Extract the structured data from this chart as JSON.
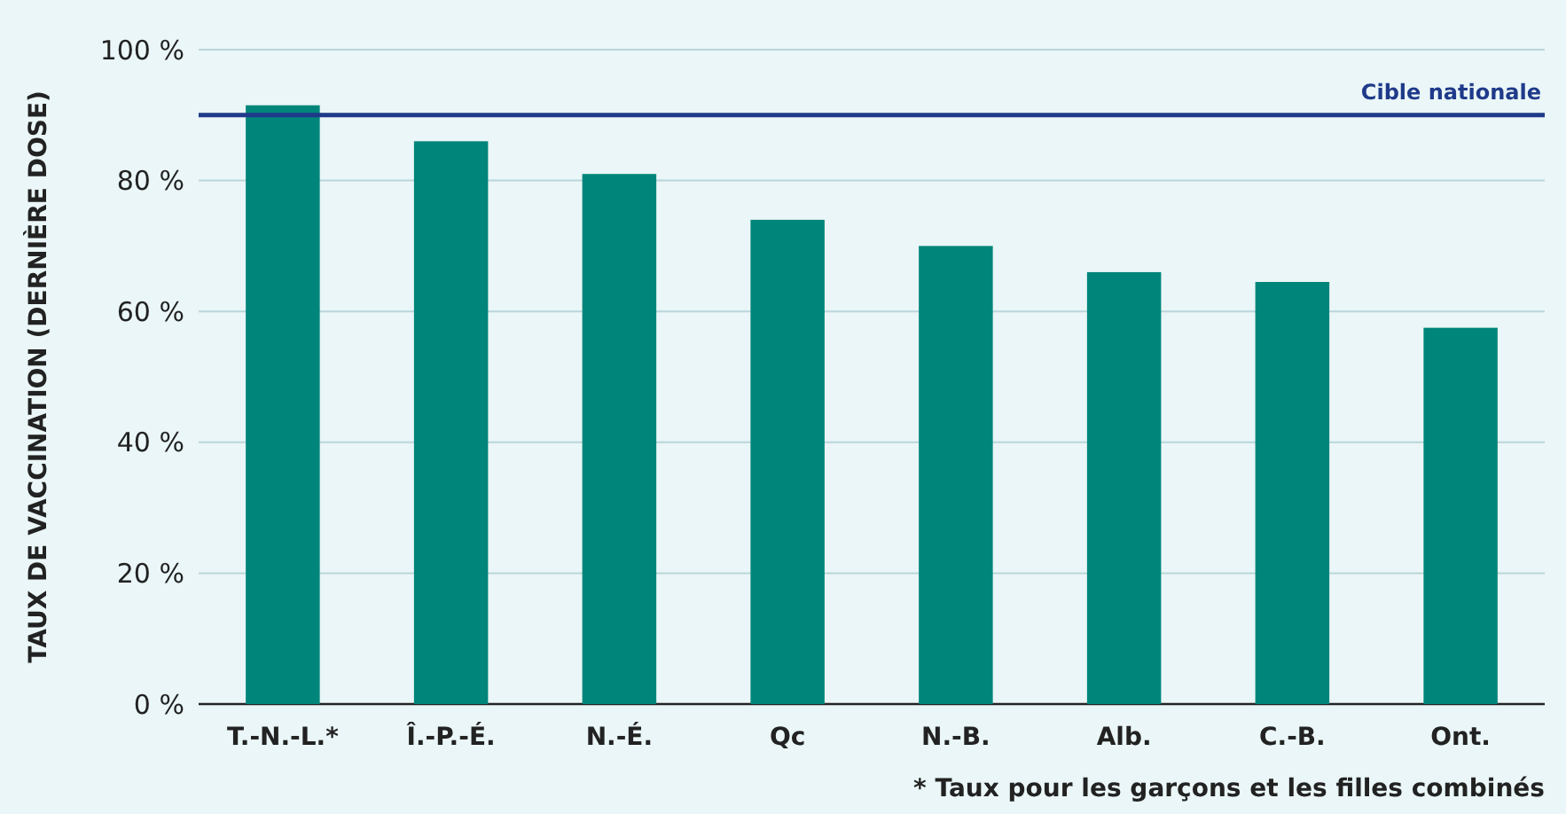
{
  "chart_data": {
    "type": "bar",
    "ylabel": "TAUX DE VACCINATION (DERNIÈRE DOSE)",
    "categories": [
      "T.-N.-L.*",
      "Î.-P.-É.",
      "N.-É.",
      "Qc",
      "N.-B.",
      "Alb.",
      "C.-B.",
      "Ont."
    ],
    "values": [
      91.5,
      86,
      81,
      74,
      70,
      66,
      64.5,
      57.5
    ],
    "color": "#00857a",
    "ylim": [
      0,
      100
    ],
    "yticks": [
      {
        "value": 0,
        "label": "0 %"
      },
      {
        "value": 20,
        "label": "20 %"
      },
      {
        "value": 40,
        "label": "40 %"
      },
      {
        "value": 60,
        "label": "60 %"
      },
      {
        "value": 80,
        "label": "80 %"
      },
      {
        "value": 100,
        "label": "100 %"
      }
    ],
    "grid": "y",
    "ref_lines": [
      {
        "axis": "y",
        "value": 90,
        "label": "Cible nationale",
        "color": "#1f3a8a"
      }
    ],
    "annotations": [
      "* Taux pour les garçons et les filles combinés"
    ]
  }
}
